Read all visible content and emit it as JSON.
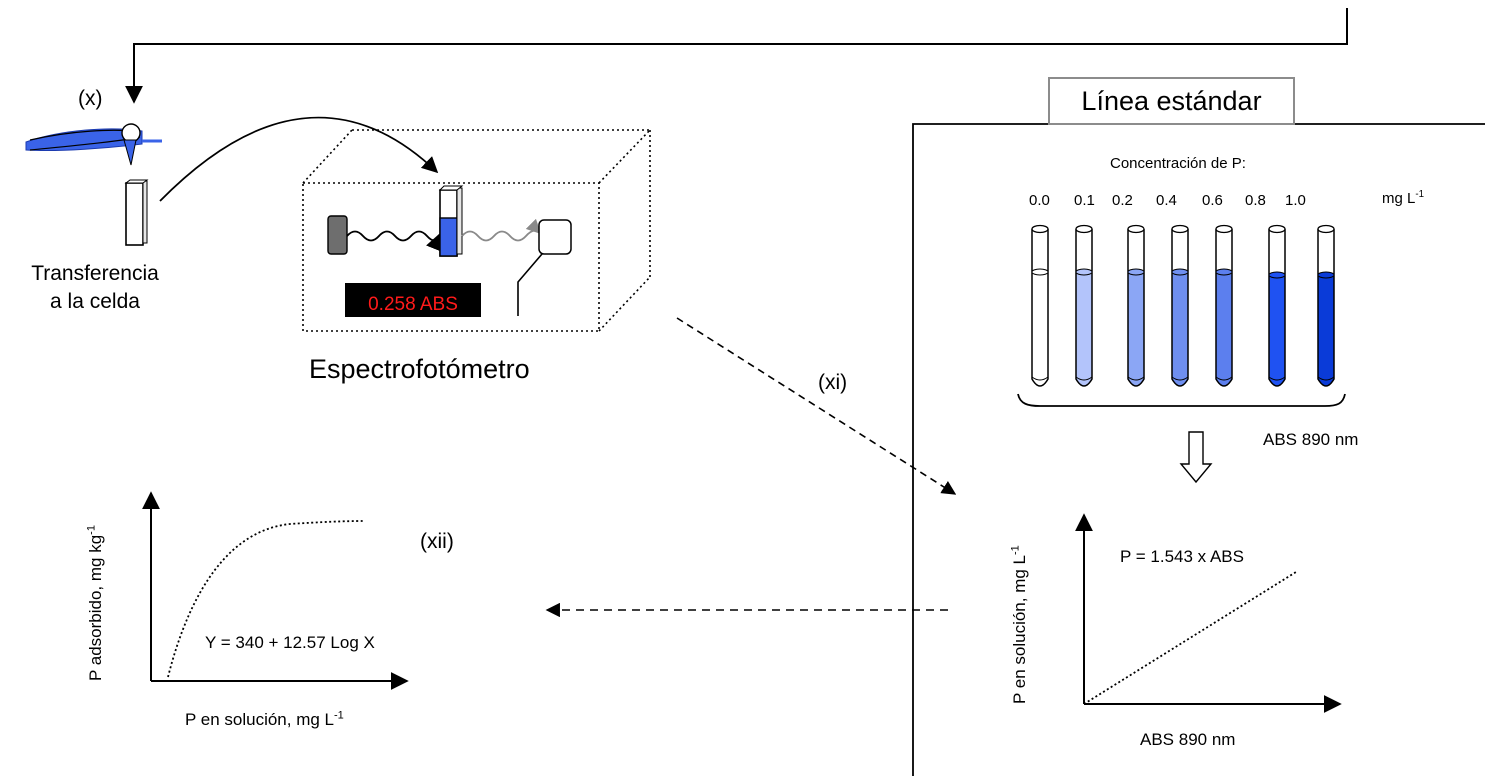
{
  "steps": {
    "step_x": "(x)",
    "step_xi": "(xi)",
    "step_xii": "(xii)"
  },
  "transfer_label": {
    "line1": "Transferencia",
    "line2": "a la celda"
  },
  "spectrophotometer": {
    "label": "Espectrofotómetro",
    "display_reading": "0.258 ABS"
  },
  "standard_line": {
    "title": "Línea estándar",
    "concentration_label": "Concentración de P:",
    "concentrations": [
      "0.0",
      "0.1",
      "0.2",
      "0.4",
      "0.6",
      "0.8",
      "1.0"
    ],
    "concentration_unit": "mg L",
    "concentration_unit_exp": "-1",
    "tube_colors": [
      "#ffffff",
      "#b3c4fb",
      "#8ba6f5",
      "#6f8ff0",
      "#5c7fee",
      "#1f52f2",
      "#0a3bd8"
    ],
    "abs_label": "ABS 890 nm",
    "calibration_plot": {
      "equation": "P = 1.543 x ABS",
      "xlabel": "ABS 890 nm",
      "ylabel": "P en solución, mg L",
      "ylabel_exp": "-1"
    }
  },
  "isotherm_plot": {
    "equation": "Y = 340 + 12.57 Log X",
    "xlabel": "P en solución, mg L",
    "xlabel_exp": "-1",
    "ylabel": "P adsorbido, mg kg",
    "ylabel_exp": "-1"
  },
  "colors": {
    "sample_blue": "#3a63e8",
    "light_source_gray": "#6e6e6e",
    "display_text": "#ff1a1a",
    "frame_gray": "#8c8c8c"
  }
}
